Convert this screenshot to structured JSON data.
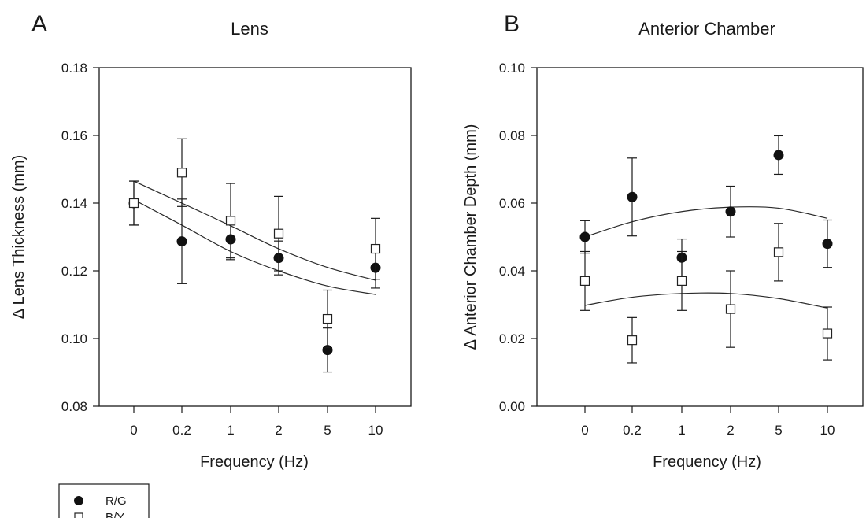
{
  "legend": {
    "entries": [
      {
        "label": "R/G",
        "marker": "filled-circle"
      },
      {
        "label": "B/Y",
        "marker": "open-square"
      }
    ],
    "placement": "bottom-left"
  },
  "chart_data": [
    {
      "type": "scatter",
      "panel_letter": "A",
      "title": "Lens",
      "xlabel": "Frequency (Hz)",
      "ylabel": "Δ Lens Thickness (mm)",
      "categories": [
        "0",
        "0.2",
        "1",
        "2",
        "5",
        "10"
      ],
      "ylim": [
        0.08,
        0.18
      ],
      "yticks": [
        "0.08",
        "0.10",
        "0.12",
        "0.14",
        "0.16",
        "0.18"
      ],
      "series": [
        {
          "name": "R/G",
          "marker": "filled-circle",
          "values": [
            0.14,
            0.1287,
            0.1293,
            0.1238,
            0.0966,
            0.1209
          ],
          "errors": [
            0.0065,
            0.0125,
            0.006,
            0.005,
            0.0065,
            0.006
          ],
          "fit": [
            0.141,
            0.1335,
            0.1257,
            0.12,
            0.1155,
            0.113
          ]
        },
        {
          "name": "B/Y",
          "marker": "open-square",
          "values": [
            0.14,
            0.149,
            0.1348,
            0.131,
            0.1058,
            0.1265
          ],
          "errors": [
            0.0065,
            0.01,
            0.011,
            0.011,
            0.0085,
            0.009
          ],
          "fit": [
            0.1465,
            0.14,
            0.1333,
            0.1265,
            0.121,
            0.1172
          ]
        }
      ]
    },
    {
      "type": "scatter",
      "panel_letter": "B",
      "title": "Anterior Chamber",
      "xlabel": "Frequency (Hz)",
      "ylabel": "Δ Anterior Chamber Depth (mm)",
      "categories": [
        "0",
        "0.2",
        "1",
        "2",
        "5",
        "10"
      ],
      "ylim": [
        0.0,
        0.1
      ],
      "yticks": [
        "0.00",
        "0.02",
        "0.04",
        "0.06",
        "0.08",
        "0.10"
      ],
      "series": [
        {
          "name": "R/G",
          "marker": "filled-circle",
          "values": [
            0.05,
            0.0618,
            0.0439,
            0.0575,
            0.0742,
            0.048
          ],
          "errors": [
            0.0048,
            0.0115,
            0.0055,
            0.0075,
            0.0057,
            0.007
          ],
          "fit": [
            0.05,
            0.0545,
            0.0575,
            0.0588,
            0.0585,
            0.0555
          ]
        },
        {
          "name": "B/Y",
          "marker": "open-square",
          "values": [
            0.037,
            0.0195,
            0.037,
            0.0287,
            0.0455,
            0.0215
          ],
          "errors": [
            0.0087,
            0.0067,
            0.0087,
            0.0113,
            0.0085,
            0.0078
          ],
          "fit": [
            0.0298,
            0.0322,
            0.0333,
            0.0333,
            0.0318,
            0.029
          ]
        }
      ]
    }
  ]
}
